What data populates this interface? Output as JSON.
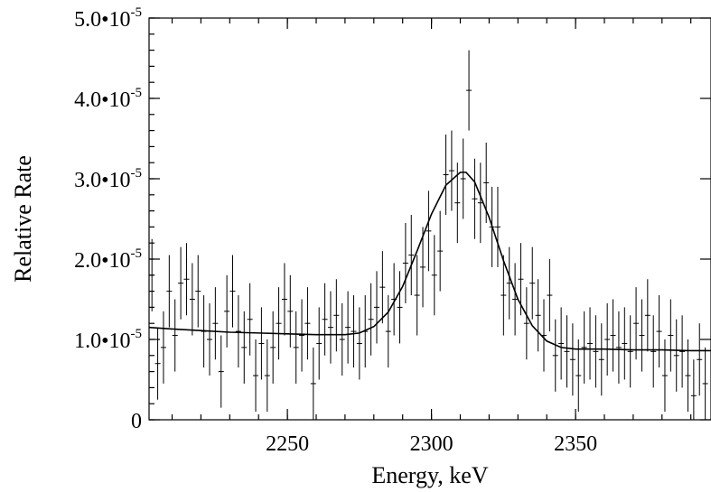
{
  "chart_data": {
    "type": "scatter",
    "title": "",
    "xlabel": "Energy, keV",
    "ylabel": "Relative Rate",
    "xlim": [
      2202,
      2397
    ],
    "ylim": [
      0,
      5e-05
    ],
    "xticks": [
      2250,
      2300,
      2350
    ],
    "xtick_labels": [
      "2250",
      "2300",
      "2350"
    ],
    "yticks": [
      0,
      1e-05,
      2e-05,
      3e-05,
      4e-05,
      5e-05
    ],
    "ytick_labels": [
      {
        "mantissa": "0",
        "exponent": ""
      },
      {
        "mantissa": "1.0•10",
        "exponent": "-5"
      },
      {
        "mantissa": "2.0•10",
        "exponent": "-5"
      },
      {
        "mantissa": "3.0•10",
        "exponent": "-5"
      },
      {
        "mantissa": "4.0•10",
        "exponent": "-5"
      },
      {
        "mantissa": "5.0•10",
        "exponent": "-5"
      }
    ],
    "grid": false,
    "series": [
      {
        "kind": "points-with-errorbars",
        "x": [
          2203,
          2205,
          2207,
          2209,
          2211,
          2213,
          2215,
          2217,
          2219,
          2221,
          2223,
          2225,
          2227,
          2229,
          2231,
          2233,
          2235,
          2237,
          2239,
          2241,
          2243,
          2245,
          2247,
          2249,
          2251,
          2253,
          2255,
          2257,
          2259,
          2261,
          2263,
          2265,
          2267,
          2269,
          2271,
          2273,
          2275,
          2277,
          2279,
          2281,
          2283,
          2285,
          2287,
          2289,
          2291,
          2293,
          2295,
          2297,
          2299,
          2301,
          2303,
          2305,
          2307,
          2309,
          2311,
          2313,
          2315,
          2317,
          2319,
          2321,
          2323,
          2325,
          2327,
          2329,
          2331,
          2333,
          2335,
          2337,
          2339,
          2341,
          2343,
          2345,
          2347,
          2349,
          2351,
          2353,
          2355,
          2357,
          2359,
          2361,
          2363,
          2365,
          2367,
          2369,
          2371,
          2373,
          2375,
          2377,
          2379,
          2381,
          2383,
          2385,
          2387,
          2389,
          2391,
          2393,
          2395
        ],
        "y": [
          1.8e-05,
          7e-06,
          9e-06,
          1.6e-05,
          1.05e-05,
          1.7e-05,
          1.75e-05,
          1.5e-05,
          1.6e-05,
          1.1e-05,
          1e-05,
          1.2e-05,
          6e-06,
          1.35e-05,
          1.6e-05,
          1.1e-05,
          9e-06,
          1.25e-05,
          5.5e-06,
          9.5e-06,
          5.5e-06,
          9e-06,
          1.2e-05,
          1.5e-05,
          1.35e-05,
          9e-06,
          1.05e-05,
          1.2e-05,
          4.5e-06,
          9.5e-06,
          1.25e-05,
          1.15e-05,
          1.3e-05,
          1e-05,
          1.15e-05,
          1.1e-05,
          9.5e-06,
          1.1e-05,
          1.25e-05,
          1.4e-05,
          1.65e-05,
          1.1e-05,
          1.5e-05,
          1.4e-05,
          1.95e-05,
          2.05e-05,
          1.55e-05,
          1.9e-05,
          2.35e-05,
          1.8e-05,
          2.1e-05,
          3.05e-05,
          3.1e-05,
          2.7e-05,
          3e-05,
          4.1e-05,
          2.75e-05,
          2.7e-05,
          2.95e-05,
          2.4e-05,
          2.4e-05,
          1.55e-05,
          1.7e-05,
          1.5e-05,
          1.75e-05,
          1.2e-05,
          1.7e-05,
          1.3e-05,
          1.05e-05,
          1.55e-05,
          8e-06,
          9.5e-06,
          8.5e-06,
          7.5e-06,
          5.5e-06,
          9e-06,
          9.5e-06,
          8.5e-06,
          7.5e-06,
          1e-05,
          1.05e-05,
          9e-06,
          9.5e-06,
          8.5e-06,
          1.2e-05,
          1.05e-05,
          1.3e-05,
          8.5e-06,
          1.1e-05,
          5.5e-06,
          1.05e-05,
          8e-06,
          8.5e-06,
          5.5e-06,
          3e-06,
          7.5e-06,
          4.5e-06
        ],
        "err": [
          4.5e-06,
          4.5e-06,
          4.5e-06,
          4.5e-06,
          4.5e-06,
          4.5e-06,
          4.5e-06,
          4.5e-06,
          4.5e-06,
          4.5e-06,
          4.5e-06,
          4.5e-06,
          4.5e-06,
          4.5e-06,
          4.5e-06,
          4.5e-06,
          4.5e-06,
          4.5e-06,
          4.5e-06,
          4.5e-06,
          4.5e-06,
          4.5e-06,
          4.5e-06,
          4.5e-06,
          4.5e-06,
          4.5e-06,
          4.5e-06,
          4.5e-06,
          4.5e-06,
          4.5e-06,
          4.5e-06,
          4.5e-06,
          4.5e-06,
          4.5e-06,
          4.5e-06,
          4.5e-06,
          4.5e-06,
          4.5e-06,
          4.5e-06,
          4.5e-06,
          4.5e-06,
          4.5e-06,
          4.5e-06,
          4.5e-06,
          5e-06,
          5e-06,
          5e-06,
          5e-06,
          5e-06,
          5e-06,
          5e-06,
          5e-06,
          5e-06,
          5e-06,
          5e-06,
          5e-06,
          5e-06,
          5e-06,
          5e-06,
          5e-06,
          5e-06,
          5e-06,
          4.5e-06,
          4.5e-06,
          4.5e-06,
          4.5e-06,
          4.5e-06,
          4.5e-06,
          4.5e-06,
          4.5e-06,
          4.5e-06,
          4.5e-06,
          4.5e-06,
          4.5e-06,
          4.5e-06,
          4.5e-06,
          4.5e-06,
          4.5e-06,
          4.5e-06,
          4.5e-06,
          4.5e-06,
          4.5e-06,
          4.5e-06,
          4.5e-06,
          4.5e-06,
          4.5e-06,
          4.5e-06,
          4.5e-06,
          4.5e-06,
          4.5e-06,
          4.5e-06,
          4.5e-06,
          4.5e-06,
          4.5e-06,
          4.5e-06,
          4.5e-06,
          4.5e-06
        ]
      },
      {
        "kind": "fit-line",
        "x": [
          2202,
          2210,
          2220,
          2230,
          2240,
          2250,
          2260,
          2270,
          2275,
          2280,
          2285,
          2290,
          2295,
          2300,
          2305,
          2310,
          2312,
          2315,
          2320,
          2325,
          2330,
          2335,
          2340,
          2345,
          2350,
          2360,
          2370,
          2380,
          2390,
          2397
        ],
        "y": [
          1.15e-05,
          1.13e-05,
          1.11e-05,
          1.09e-05,
          1.08e-05,
          1.07e-05,
          1.06e-05,
          1.06e-05,
          1.08e-05,
          1.16e-05,
          1.34e-05,
          1.66e-05,
          2.1e-05,
          2.56e-05,
          2.92e-05,
          3.08e-05,
          3.08e-05,
          2.96e-05,
          2.52e-05,
          1.98e-05,
          1.5e-05,
          1.17e-05,
          9.8e-06,
          9e-06,
          8.8e-06,
          8.8e-06,
          8.7e-06,
          8.7e-06,
          8.6e-06,
          8.6e-06
        ]
      }
    ]
  }
}
